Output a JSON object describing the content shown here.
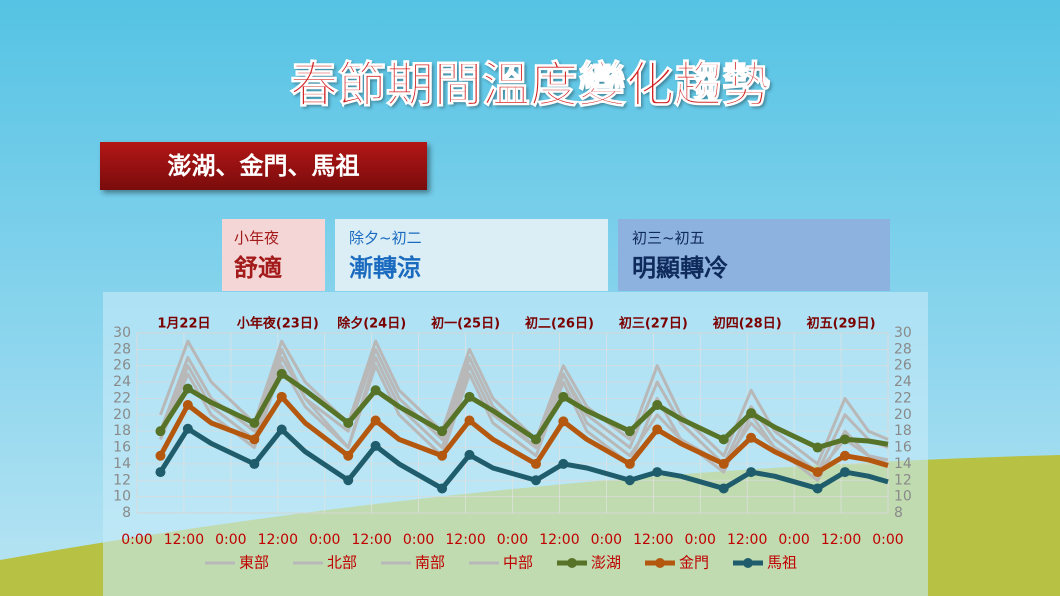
{
  "header": {
    "title": "春節期間溫度變化趨勢",
    "subtitle": "澎湖、金門、馬祖"
  },
  "periods": [
    {
      "label": "小年夜",
      "mood": "舒適"
    },
    {
      "label": "除夕~初二",
      "mood": "漸轉涼"
    },
    {
      "label": "初三~初五",
      "mood": "明顯轉冷"
    }
  ],
  "chart_data": {
    "type": "line",
    "day_labels": [
      "1月22日",
      "小年夜(23日)",
      "除夕(24日)",
      "初一(25日)",
      "初二(26日)",
      "初三(27日)",
      "初四(28日)",
      "初五(29日)"
    ],
    "x": [
      6,
      13,
      19,
      30,
      37,
      43,
      54,
      61,
      67,
      78,
      85,
      91,
      102,
      109,
      115,
      126,
      133,
      139,
      150,
      157,
      163,
      174,
      181,
      187,
      192
    ],
    "xlim": [
      0,
      192
    ],
    "xticks": [
      {
        "value": 0,
        "label": "0:00"
      },
      {
        "value": 12,
        "label": "12:00"
      },
      {
        "value": 24,
        "label": "0:00"
      },
      {
        "value": 36,
        "label": "12:00"
      },
      {
        "value": 48,
        "label": "0:00"
      },
      {
        "value": 60,
        "label": "12:00"
      },
      {
        "value": 72,
        "label": "0:00"
      },
      {
        "value": 84,
        "label": "12:00"
      },
      {
        "value": 96,
        "label": "0:00"
      },
      {
        "value": 108,
        "label": "12:00"
      },
      {
        "value": 120,
        "label": "0:00"
      },
      {
        "value": 132,
        "label": "12:00"
      },
      {
        "value": 144,
        "label": "0:00"
      },
      {
        "value": 156,
        "label": "12:00"
      },
      {
        "value": 168,
        "label": "0:00"
      },
      {
        "value": 180,
        "label": "12:00"
      },
      {
        "value": 192,
        "label": "0:00"
      }
    ],
    "ylim": [
      8,
      30
    ],
    "yticks": [
      8,
      10,
      12,
      14,
      16,
      18,
      20,
      22,
      24,
      26,
      28,
      30
    ],
    "series": [
      {
        "name": "東部",
        "color": "#b8b8b8",
        "marker": false,
        "values": [
          20,
          29,
          24,
          19,
          29,
          24,
          19,
          29,
          23,
          18,
          28,
          22,
          17,
          26,
          21,
          17,
          26,
          20,
          15,
          23,
          18,
          14,
          22,
          18,
          17
        ]
      },
      {
        "name": "北部",
        "color": "#b8b8b8",
        "marker": false,
        "values": [
          17,
          26,
          21,
          17,
          27,
          22,
          16,
          27,
          21,
          16,
          26,
          20,
          16,
          25,
          19,
          15,
          20,
          17,
          14,
          19,
          16,
          13,
          20,
          17,
          16
        ]
      },
      {
        "name": "南部",
        "color": "#b8b8b8",
        "marker": false,
        "values": [
          18,
          27,
          22,
          18,
          28,
          22,
          18,
          28,
          22,
          17,
          27,
          21,
          16,
          25,
          20,
          16,
          24,
          19,
          14,
          21,
          17,
          13,
          17,
          15,
          14.5
        ]
      },
      {
        "name": "中部",
        "color": "#b8b8b8",
        "marker": false,
        "values": [
          17,
          25,
          20,
          16,
          26,
          21,
          16,
          26,
          20,
          15,
          25,
          19,
          15,
          24,
          18,
          14,
          22,
          17,
          13,
          20,
          16,
          12,
          18,
          15,
          14
        ]
      },
      {
        "name": "澎湖",
        "color": "#577328",
        "marker": true,
        "values": [
          18,
          23.2,
          21.5,
          19,
          25,
          23,
          19,
          23,
          21,
          18,
          22.2,
          20.5,
          17,
          22.2,
          20.5,
          18,
          21.2,
          19.5,
          17,
          20.2,
          18.5,
          16,
          17,
          16.8,
          16.4
        ]
      },
      {
        "name": "金門",
        "color": "#b4570f",
        "marker": true,
        "values": [
          15,
          21.2,
          19,
          17,
          22.2,
          19,
          15,
          19.3,
          17,
          15,
          19.3,
          17,
          14,
          19.2,
          17,
          14,
          18.2,
          16.5,
          14,
          17.2,
          15.5,
          13,
          15,
          14.5,
          13.8
        ]
      },
      {
        "name": "馬祖",
        "color": "#1f5d6c",
        "marker": true,
        "values": [
          13,
          18.3,
          16.5,
          14,
          18.2,
          15.5,
          12,
          16.2,
          14,
          11,
          15.1,
          13.5,
          12,
          14,
          13.5,
          12,
          13,
          12.5,
          11,
          13,
          12.5,
          11,
          13,
          12.5,
          11.8
        ]
      }
    ]
  }
}
